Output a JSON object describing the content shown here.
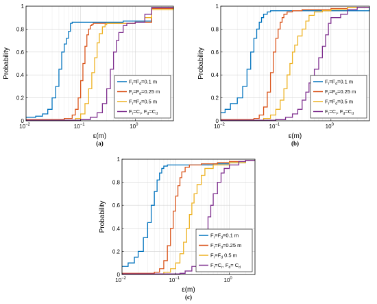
{
  "chart_data": [
    {
      "type": "line",
      "panel_label": "(a)",
      "xlabel": "ε(m)",
      "ylabel": "Probability",
      "xscale": "log",
      "xlim": [
        0.01,
        5
      ],
      "ylim": [
        0,
        1
      ],
      "x_ticks": [
        {
          "value": 0.01,
          "base": "10",
          "exp": "−2"
        },
        {
          "value": 0.1,
          "base": "10",
          "exp": "−1"
        },
        {
          "value": 1,
          "base": "10",
          "exp": "0"
        }
      ],
      "y_ticks": [
        "0",
        "0.2",
        "0.4",
        "0.6",
        "0.8",
        "1"
      ],
      "grid": true,
      "legend_position": "lower-right",
      "series": [
        {
          "legend": [
            {
              "t": "F"
            },
            {
              "t": "r",
              "sub": true
            },
            {
              "t": "=F"
            },
            {
              "t": "d",
              "sub": true
            },
            {
              "t": "=0.1 m"
            }
          ],
          "color": "#0072BD",
          "x": [
            0.01,
            0.015,
            0.02,
            0.025,
            0.03,
            0.035,
            0.04,
            0.045,
            0.05,
            0.055,
            0.06,
            0.065,
            0.07,
            0.08,
            0.1,
            0.2,
            0.3,
            0.4,
            0.5,
            0.6,
            1,
            2,
            5
          ],
          "y": [
            0.03,
            0.04,
            0.06,
            0.1,
            0.2,
            0.3,
            0.45,
            0.6,
            0.67,
            0.72,
            0.78,
            0.85,
            0.86,
            0.86,
            0.86,
            0.86,
            0.86,
            0.86,
            0.86,
            0.87,
            0.87,
            0.98,
            0.99
          ]
        },
        {
          "legend": [
            {
              "t": "F"
            },
            {
              "t": "r",
              "sub": true
            },
            {
              "t": "=F"
            },
            {
              "t": "d",
              "sub": true
            },
            {
              "t": "=0.25 m"
            }
          ],
          "color": "#D95319",
          "x": [
            0.01,
            0.05,
            0.07,
            0.08,
            0.09,
            0.1,
            0.11,
            0.12,
            0.13,
            0.14,
            0.15,
            0.16,
            0.17,
            0.2,
            0.3,
            0.5,
            1,
            2,
            5
          ],
          "y": [
            0.01,
            0.02,
            0.05,
            0.1,
            0.2,
            0.35,
            0.5,
            0.65,
            0.75,
            0.8,
            0.83,
            0.84,
            0.85,
            0.85,
            0.85,
            0.85,
            0.86,
            0.98,
            0.99
          ]
        },
        {
          "legend": [
            {
              "t": "F"
            },
            {
              "t": "r",
              "sub": true
            },
            {
              "t": "=F"
            },
            {
              "t": "d",
              "sub": true
            },
            {
              "t": "=0.5 m"
            }
          ],
          "color": "#EDB120",
          "x": [
            0.01,
            0.08,
            0.1,
            0.12,
            0.14,
            0.16,
            0.18,
            0.2,
            0.22,
            0.25,
            0.28,
            0.3,
            0.35,
            0.5,
            1,
            1.5,
            2,
            5
          ],
          "y": [
            0.005,
            0.02,
            0.06,
            0.15,
            0.28,
            0.42,
            0.55,
            0.68,
            0.76,
            0.82,
            0.84,
            0.85,
            0.85,
            0.85,
            0.86,
            0.9,
            0.97,
            0.99
          ]
        },
        {
          "legend": [
            {
              "t": "F"
            },
            {
              "t": "r",
              "sub": true
            },
            {
              "t": "=C"
            },
            {
              "t": "r",
              "sub": true
            },
            {
              "t": ", F"
            },
            {
              "t": "d",
              "sub": true
            },
            {
              "t": "=C"
            },
            {
              "t": "d",
              "sub": true
            }
          ],
          "color": "#7E2F8E",
          "x": [
            0.01,
            0.1,
            0.15,
            0.2,
            0.25,
            0.3,
            0.35,
            0.4,
            0.45,
            0.5,
            0.6,
            0.7,
            0.8,
            1,
            1.5,
            2,
            5
          ],
          "y": [
            0.005,
            0.01,
            0.03,
            0.07,
            0.15,
            0.28,
            0.45,
            0.6,
            0.7,
            0.77,
            0.83,
            0.85,
            0.85,
            0.86,
            0.93,
            0.99,
            0.99
          ]
        }
      ]
    },
    {
      "type": "line",
      "panel_label": "(b)",
      "xlabel": "ε(m)",
      "ylabel": "Probability",
      "xscale": "log",
      "xlim": [
        0.01,
        5
      ],
      "ylim": [
        0,
        1
      ],
      "x_ticks": [
        {
          "value": 0.01,
          "base": "10",
          "exp": "−2"
        },
        {
          "value": 0.1,
          "base": "10",
          "exp": "−1"
        },
        {
          "value": 1,
          "base": "10",
          "exp": "0"
        }
      ],
      "y_ticks": [
        "0",
        "0.2",
        "0.4",
        "0.6",
        "0.8",
        "1"
      ],
      "grid": true,
      "legend_position": "lower-right",
      "series": [
        {
          "legend": [
            {
              "t": "F"
            },
            {
              "t": "r",
              "sub": true
            },
            {
              "t": "=F"
            },
            {
              "t": "d",
              "sub": true
            },
            {
              "t": "=0.1 m"
            }
          ],
          "color": "#0072BD",
          "x": [
            0.01,
            0.012,
            0.015,
            0.02,
            0.025,
            0.03,
            0.035,
            0.04,
            0.045,
            0.05,
            0.055,
            0.06,
            0.07,
            0.08,
            0.1,
            0.2,
            1,
            5
          ],
          "y": [
            0.07,
            0.1,
            0.15,
            0.2,
            0.3,
            0.45,
            0.6,
            0.72,
            0.8,
            0.86,
            0.9,
            0.93,
            0.95,
            0.96,
            0.96,
            0.96,
            0.96,
            0.99
          ]
        },
        {
          "legend": [
            {
              "t": "F"
            },
            {
              "t": "r",
              "sub": true
            },
            {
              "t": "=F"
            },
            {
              "t": "d",
              "sub": true
            },
            {
              "t": "=0.25 m"
            }
          ],
          "color": "#D95319",
          "x": [
            0.01,
            0.04,
            0.05,
            0.06,
            0.07,
            0.08,
            0.09,
            0.1,
            0.11,
            0.12,
            0.13,
            0.14,
            0.16,
            0.2,
            0.3,
            0.5,
            1,
            2,
            5
          ],
          "y": [
            0.01,
            0.02,
            0.05,
            0.12,
            0.25,
            0.42,
            0.6,
            0.72,
            0.8,
            0.86,
            0.9,
            0.93,
            0.95,
            0.96,
            0.97,
            0.97,
            0.98,
            0.99,
            0.99
          ]
        },
        {
          "legend": [
            {
              "t": "F"
            },
            {
              "t": "r",
              "sub": true
            },
            {
              "t": "=F"
            },
            {
              "t": "d",
              "sub": true
            },
            {
              "t": "=0.5 m"
            }
          ],
          "color": "#EDB120",
          "x": [
            0.01,
            0.06,
            0.08,
            0.1,
            0.12,
            0.14,
            0.16,
            0.18,
            0.2,
            0.22,
            0.25,
            0.3,
            0.35,
            0.4,
            0.5,
            0.7,
            1,
            2,
            5
          ],
          "y": [
            0.005,
            0.02,
            0.05,
            0.1,
            0.18,
            0.28,
            0.4,
            0.5,
            0.6,
            0.66,
            0.74,
            0.8,
            0.87,
            0.92,
            0.95,
            0.96,
            0.97,
            0.99,
            0.99
          ]
        },
        {
          "legend": [
            {
              "t": "F"
            },
            {
              "t": "r",
              "sub": true
            },
            {
              "t": "=C"
            },
            {
              "t": "r",
              "sub": true
            },
            {
              "t": ", F"
            },
            {
              "t": "d",
              "sub": true
            },
            {
              "t": "=C"
            },
            {
              "t": "d",
              "sub": true
            }
          ],
          "color": "#7E2F8E",
          "x": [
            0.01,
            0.1,
            0.15,
            0.2,
            0.25,
            0.3,
            0.35,
            0.4,
            0.5,
            0.6,
            0.7,
            0.8,
            0.9,
            1,
            1.5,
            2,
            3,
            5
          ],
          "y": [
            0.005,
            0.01,
            0.03,
            0.06,
            0.1,
            0.18,
            0.25,
            0.33,
            0.45,
            0.55,
            0.65,
            0.75,
            0.85,
            0.9,
            0.93,
            0.97,
            0.99,
            0.99
          ]
        }
      ]
    },
    {
      "type": "line",
      "panel_label": "(c)",
      "xlabel": "ε(m)",
      "ylabel": "Probability",
      "xscale": "log",
      "xlim": [
        0.01,
        3
      ],
      "ylim": [
        0,
        1
      ],
      "x_ticks": [
        {
          "value": 0.01,
          "base": "10",
          "exp": "−2"
        },
        {
          "value": 0.1,
          "base": "10",
          "exp": "−1"
        },
        {
          "value": 1,
          "base": "10",
          "exp": "0"
        }
      ],
      "y_ticks": [
        "0",
        "0.2",
        "0.4",
        "0.6",
        "0.8",
        "1"
      ],
      "grid": true,
      "legend_position": "lower-right",
      "series": [
        {
          "legend": [
            {
              "t": "F"
            },
            {
              "t": "r",
              "sub": true
            },
            {
              "t": "=F"
            },
            {
              "t": "d",
              "sub": true
            },
            {
              "t": "=0.1 m"
            }
          ],
          "color": "#0072BD",
          "x": [
            0.01,
            0.013,
            0.017,
            0.02,
            0.025,
            0.03,
            0.035,
            0.04,
            0.045,
            0.05,
            0.055,
            0.06,
            0.07,
            0.1,
            0.2,
            0.5,
            1,
            2,
            3
          ],
          "y": [
            0.07,
            0.1,
            0.15,
            0.2,
            0.32,
            0.45,
            0.6,
            0.72,
            0.82,
            0.88,
            0.92,
            0.94,
            0.95,
            0.95,
            0.95,
            0.96,
            0.97,
            0.99,
            0.99
          ]
        },
        {
          "legend": [
            {
              "t": "F"
            },
            {
              "t": "r",
              "sub": true
            },
            {
              "t": "=F"
            },
            {
              "t": "d",
              "sub": true
            },
            {
              "t": "=0.25 m"
            }
          ],
          "color": "#D95319",
          "x": [
            0.01,
            0.04,
            0.05,
            0.06,
            0.07,
            0.08,
            0.09,
            0.1,
            0.11,
            0.12,
            0.13,
            0.15,
            0.18,
            0.3,
            0.6,
            1,
            2,
            3
          ],
          "y": [
            0.01,
            0.02,
            0.05,
            0.12,
            0.25,
            0.4,
            0.55,
            0.68,
            0.77,
            0.84,
            0.89,
            0.93,
            0.95,
            0.96,
            0.97,
            0.98,
            0.99,
            0.99
          ]
        },
        {
          "legend": [
            {
              "t": "F"
            },
            {
              "t": "r",
              "sub": true
            },
            {
              "t": "=F"
            },
            {
              "t": "d",
              "sub": true
            },
            {
              "t": " 0.5 m"
            }
          ],
          "color": "#EDB120",
          "x": [
            0.01,
            0.06,
            0.08,
            0.1,
            0.12,
            0.14,
            0.16,
            0.18,
            0.2,
            0.22,
            0.25,
            0.3,
            0.35,
            0.5,
            1,
            2,
            3
          ],
          "y": [
            0.005,
            0.02,
            0.05,
            0.1,
            0.18,
            0.28,
            0.4,
            0.52,
            0.62,
            0.7,
            0.78,
            0.86,
            0.92,
            0.95,
            0.97,
            0.99,
            0.99
          ]
        },
        {
          "legend": [
            {
              "t": "F"
            },
            {
              "t": "r",
              "sub": true
            },
            {
              "t": "=C"
            },
            {
              "t": "r",
              "sub": true
            },
            {
              "t": ", F"
            },
            {
              "t": "d",
              "sub": true
            },
            {
              "t": "= C"
            },
            {
              "t": "d",
              "sub": true
            }
          ],
          "color": "#7E2F8E",
          "x": [
            0.01,
            0.12,
            0.15,
            0.2,
            0.25,
            0.3,
            0.35,
            0.4,
            0.45,
            0.5,
            0.6,
            0.7,
            0.8,
            1,
            1.5,
            2,
            3
          ],
          "y": [
            0.005,
            0.01,
            0.03,
            0.07,
            0.15,
            0.25,
            0.38,
            0.5,
            0.6,
            0.7,
            0.8,
            0.88,
            0.92,
            0.95,
            0.98,
            0.99,
            0.99
          ]
        }
      ]
    }
  ]
}
